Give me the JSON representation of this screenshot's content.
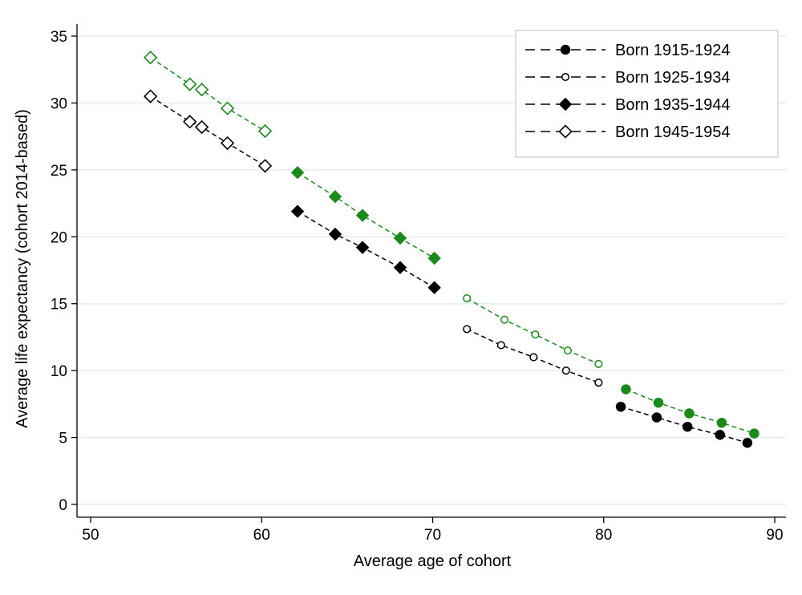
{
  "chart_data": {
    "type": "scatter",
    "title": "",
    "xlabel": "Average age of cohort",
    "ylabel": "Average life expectancy (cohort 2014-based)",
    "xlim": [
      50,
      90
    ],
    "ylim": [
      0,
      35
    ],
    "xticks": [
      "50",
      "60",
      "70",
      "80",
      "90"
    ],
    "yticks": [
      "0",
      "5",
      "10",
      "15",
      "20",
      "25",
      "30",
      "35"
    ],
    "grid": "horizontal",
    "legend_position": "top-right",
    "colors": {
      "black": "#000000",
      "green": "#1a8a1a",
      "grid": "#e4ecee"
    },
    "series": [
      {
        "name": "Born 1915-1924",
        "marker": "filled-circle",
        "color": "#000000",
        "x": [
          81.0,
          83.1,
          84.9,
          86.8,
          88.4
        ],
        "y": [
          7.3,
          6.5,
          5.8,
          5.2,
          4.6
        ]
      },
      {
        "name": "",
        "marker": "filled-circle",
        "color": "#1a8a1a",
        "x": [
          81.3,
          83.2,
          85.0,
          86.9,
          88.8
        ],
        "y": [
          8.6,
          7.6,
          6.8,
          6.1,
          5.3
        ]
      },
      {
        "name": "Born 1925-1934",
        "marker": "hollow-circle",
        "color": "#000000",
        "x": [
          72.0,
          74.0,
          75.9,
          77.8,
          79.7
        ],
        "y": [
          13.1,
          11.9,
          11.0,
          10.0,
          9.1
        ]
      },
      {
        "name": "",
        "marker": "hollow-circle",
        "color": "#1a8a1a",
        "x": [
          72.0,
          74.2,
          76.0,
          77.9,
          79.7
        ],
        "y": [
          15.4,
          13.8,
          12.7,
          11.5,
          10.5
        ]
      },
      {
        "name": "Born 1935-1944",
        "marker": "filled-diamond",
        "color": "#000000",
        "x": [
          62.1,
          64.3,
          65.9,
          68.1,
          70.1
        ],
        "y": [
          21.9,
          20.2,
          19.2,
          17.7,
          16.2
        ]
      },
      {
        "name": "",
        "marker": "filled-diamond",
        "color": "#1a8a1a",
        "x": [
          62.1,
          64.3,
          65.9,
          68.1,
          70.1
        ],
        "y": [
          24.8,
          23.0,
          21.6,
          19.9,
          18.4
        ]
      },
      {
        "name": "Born 1945-1954",
        "marker": "hollow-diamond",
        "color": "#000000",
        "x": [
          53.5,
          55.8,
          56.5,
          58.0,
          60.2
        ],
        "y": [
          30.5,
          28.6,
          28.2,
          27.0,
          25.3
        ]
      },
      {
        "name": "",
        "marker": "hollow-diamond",
        "color": "#1a8a1a",
        "x": [
          53.5,
          55.8,
          56.5,
          58.0,
          60.2
        ],
        "y": [
          33.4,
          31.4,
          31.0,
          29.6,
          27.9
        ]
      }
    ]
  }
}
